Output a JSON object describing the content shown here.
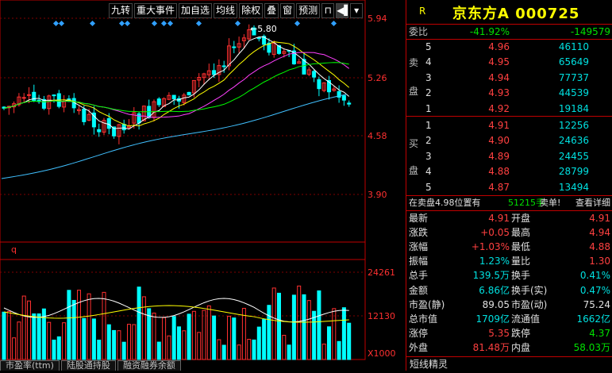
{
  "toolbar": {
    "items": [
      "九转",
      "重大事件",
      "加自选",
      "均线",
      "除权",
      "叠",
      "窗",
      "预测"
    ],
    "icons": [
      "lock-icon",
      "play-icon",
      "dropdown-icon"
    ]
  },
  "chart_axis": {
    "price_ticks": [
      "5.94",
      "5.26",
      "4.58",
      "3.90"
    ],
    "volume_ticks": [
      "24261",
      "12130"
    ],
    "volume_unit": "X1000",
    "high_marker": "5.80",
    "indicator_label": "q"
  },
  "bottom_tabs": [
    "市盈率(ttm)",
    "陆股通持股",
    "融资融券余额"
  ],
  "quote": {
    "flag": "R",
    "name": "京东方A",
    "code": "000725",
    "committee_ratio_label": "委比",
    "committee_ratio": "-41.92%",
    "committee_diff": "-149579",
    "sell_label": [
      "卖",
      "盘"
    ],
    "buy_label": [
      "买",
      "盘"
    ],
    "asks": [
      {
        "level": "5",
        "price": "4.96",
        "volume": "46110"
      },
      {
        "level": "4",
        "price": "4.95",
        "volume": "65649"
      },
      {
        "level": "3",
        "price": "4.94",
        "volume": "77737"
      },
      {
        "level": "2",
        "price": "4.93",
        "volume": "44539"
      },
      {
        "level": "1",
        "price": "4.92",
        "volume": "19184"
      }
    ],
    "bids": [
      {
        "level": "1",
        "price": "4.91",
        "volume": "12256"
      },
      {
        "level": "2",
        "price": "4.90",
        "volume": "24636"
      },
      {
        "level": "3",
        "price": "4.89",
        "volume": "24455"
      },
      {
        "level": "4",
        "price": "4.88",
        "volume": "28799"
      },
      {
        "level": "5",
        "price": "4.87",
        "volume": "13494"
      }
    ],
    "notice": {
      "prefix": "在卖盘4.98位置有",
      "amount": "51215手",
      "suffix": "卖单!",
      "link": "查看详细"
    },
    "stats": [
      {
        "l1": "最新",
        "v1": "4.91",
        "c1": "red",
        "l2": "开盘",
        "v2": "4.91",
        "c2": "red"
      },
      {
        "l1": "涨跌",
        "v1": "+0.05",
        "c1": "red",
        "l2": "最高",
        "v2": "4.94",
        "c2": "red"
      },
      {
        "l1": "涨幅",
        "v1": "+1.03%",
        "c1": "red",
        "l2": "最低",
        "v2": "4.88",
        "c2": "red"
      },
      {
        "l1": "振幅",
        "v1": "1.23%",
        "c1": "cyan",
        "l2": "量比",
        "v2": "1.30",
        "c2": "red"
      },
      {
        "l1": "总手",
        "v1": "139.5万",
        "c1": "cyan",
        "l2": "换手",
        "v2": "0.41%",
        "c2": "cyan"
      },
      {
        "l1": "金额",
        "v1": "6.86亿",
        "c1": "cyan",
        "l2": "换手(实)",
        "v2": "0.47%",
        "c2": "cyan"
      },
      {
        "l1": "市盈(静)",
        "v1": "89.05",
        "c1": "white",
        "l2": "市盈(动)",
        "v2": "75.24",
        "c2": "white"
      },
      {
        "l1": "总市值",
        "v1": "1709亿",
        "c1": "cyan",
        "l2": "流通值",
        "v2": "1662亿",
        "c2": "cyan"
      },
      {
        "l1": "涨停",
        "v1": "5.35",
        "c1": "red",
        "l2": "跌停",
        "v2": "4.37",
        "c2": "green"
      },
      {
        "l1": "外盘",
        "v1": "81.48万",
        "c1": "red",
        "l2": "内盘",
        "v2": "58.03万",
        "c2": "green"
      }
    ],
    "footer": "短线精灵"
  },
  "colors": {
    "up": "#ff3030",
    "down": "#00ffff",
    "border": "#c00000",
    "accent": "#ffff00"
  }
}
